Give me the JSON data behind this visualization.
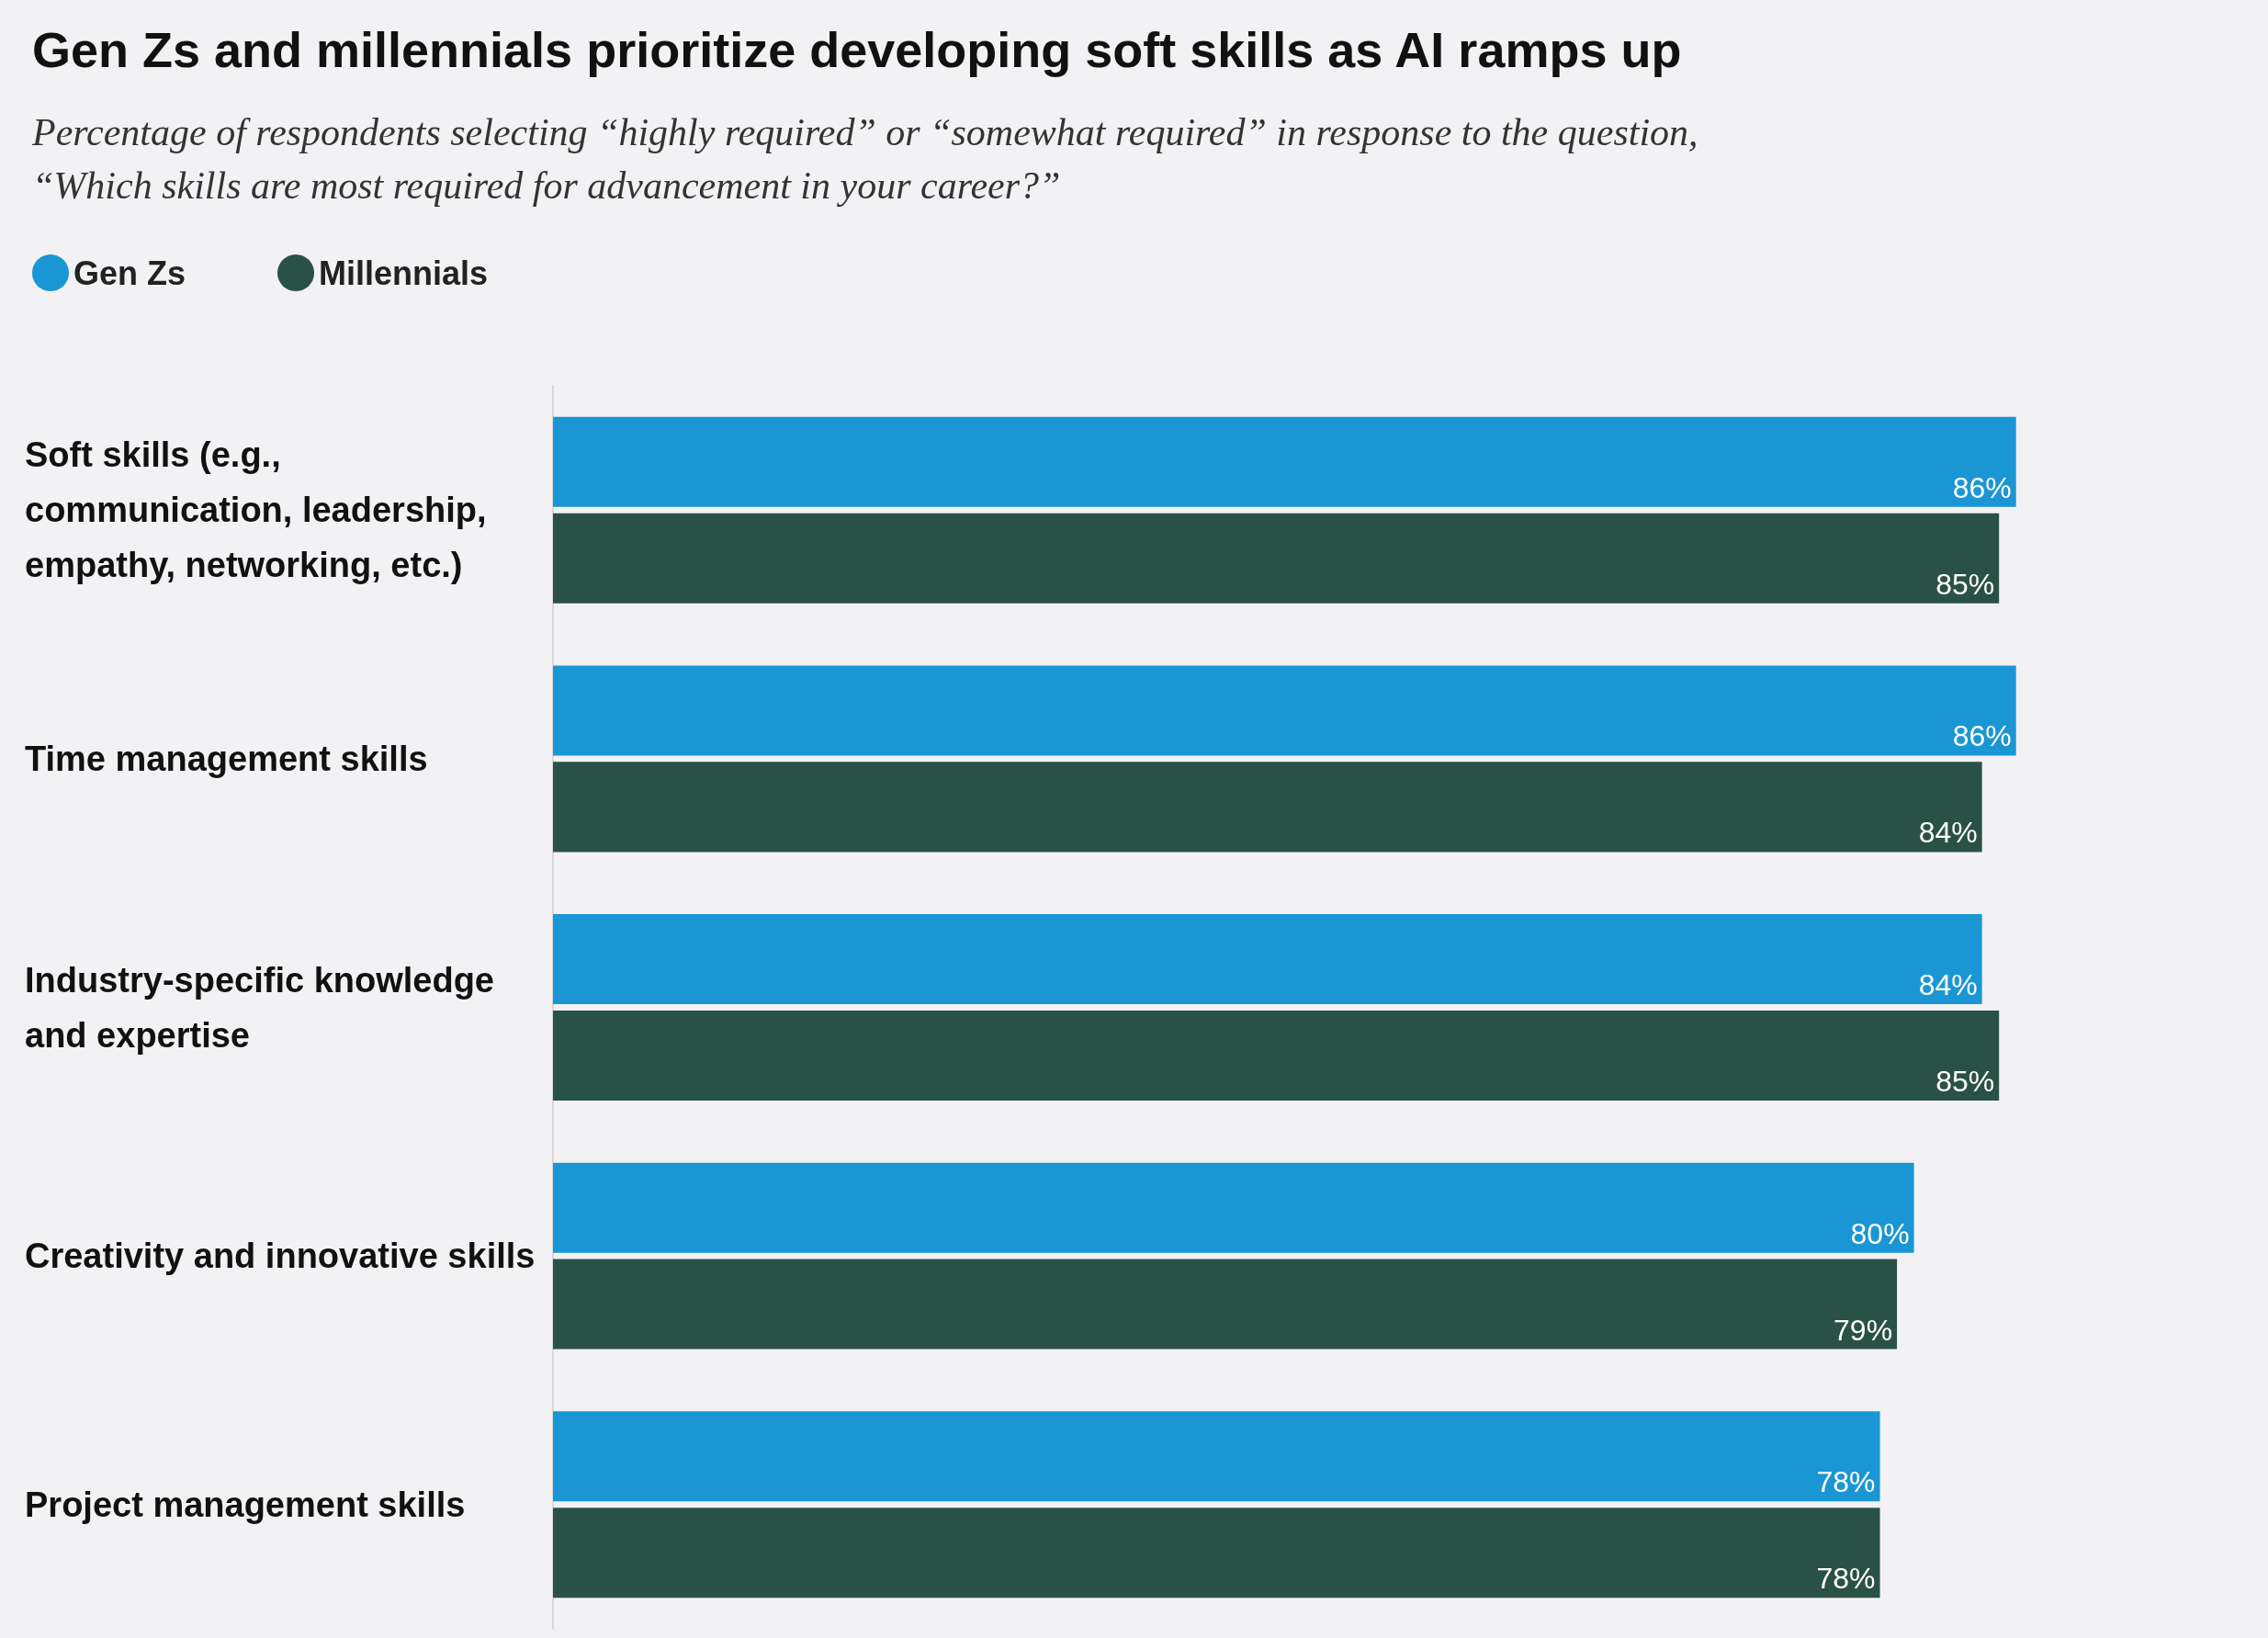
{
  "chart_data": {
    "type": "bar",
    "orientation": "horizontal",
    "title": "Gen Zs and millennials prioritize developing soft skills as AI ramps up",
    "subtitle": "Percentage of respondents selecting “highly required” or “somewhat required” in response to the question, “Which skills are most required for advancement in your career?”",
    "categories": [
      "Soft skills (e.g., communication, leadership, empathy, networking, etc.)",
      "Time management skills",
      "Industry-specific knowledge and expertise",
      "Creativity and innovative skills",
      "Project management skills"
    ],
    "series": [
      {
        "name": "Gen Zs",
        "color": "#1a96d4",
        "values": [
          86,
          86,
          84,
          80,
          78
        ],
        "value_labels": [
          "86%",
          "86%",
          "84%",
          "80%",
          "78%"
        ]
      },
      {
        "name": "Millennials",
        "color": "#2a5145",
        "values": [
          85,
          84,
          85,
          79,
          78
        ],
        "value_labels": [
          "85%",
          "84%",
          "85%",
          "79%",
          "78%"
        ]
      }
    ],
    "tick_labels": "y",
    "legend": "top left",
    "grid": false
  }
}
